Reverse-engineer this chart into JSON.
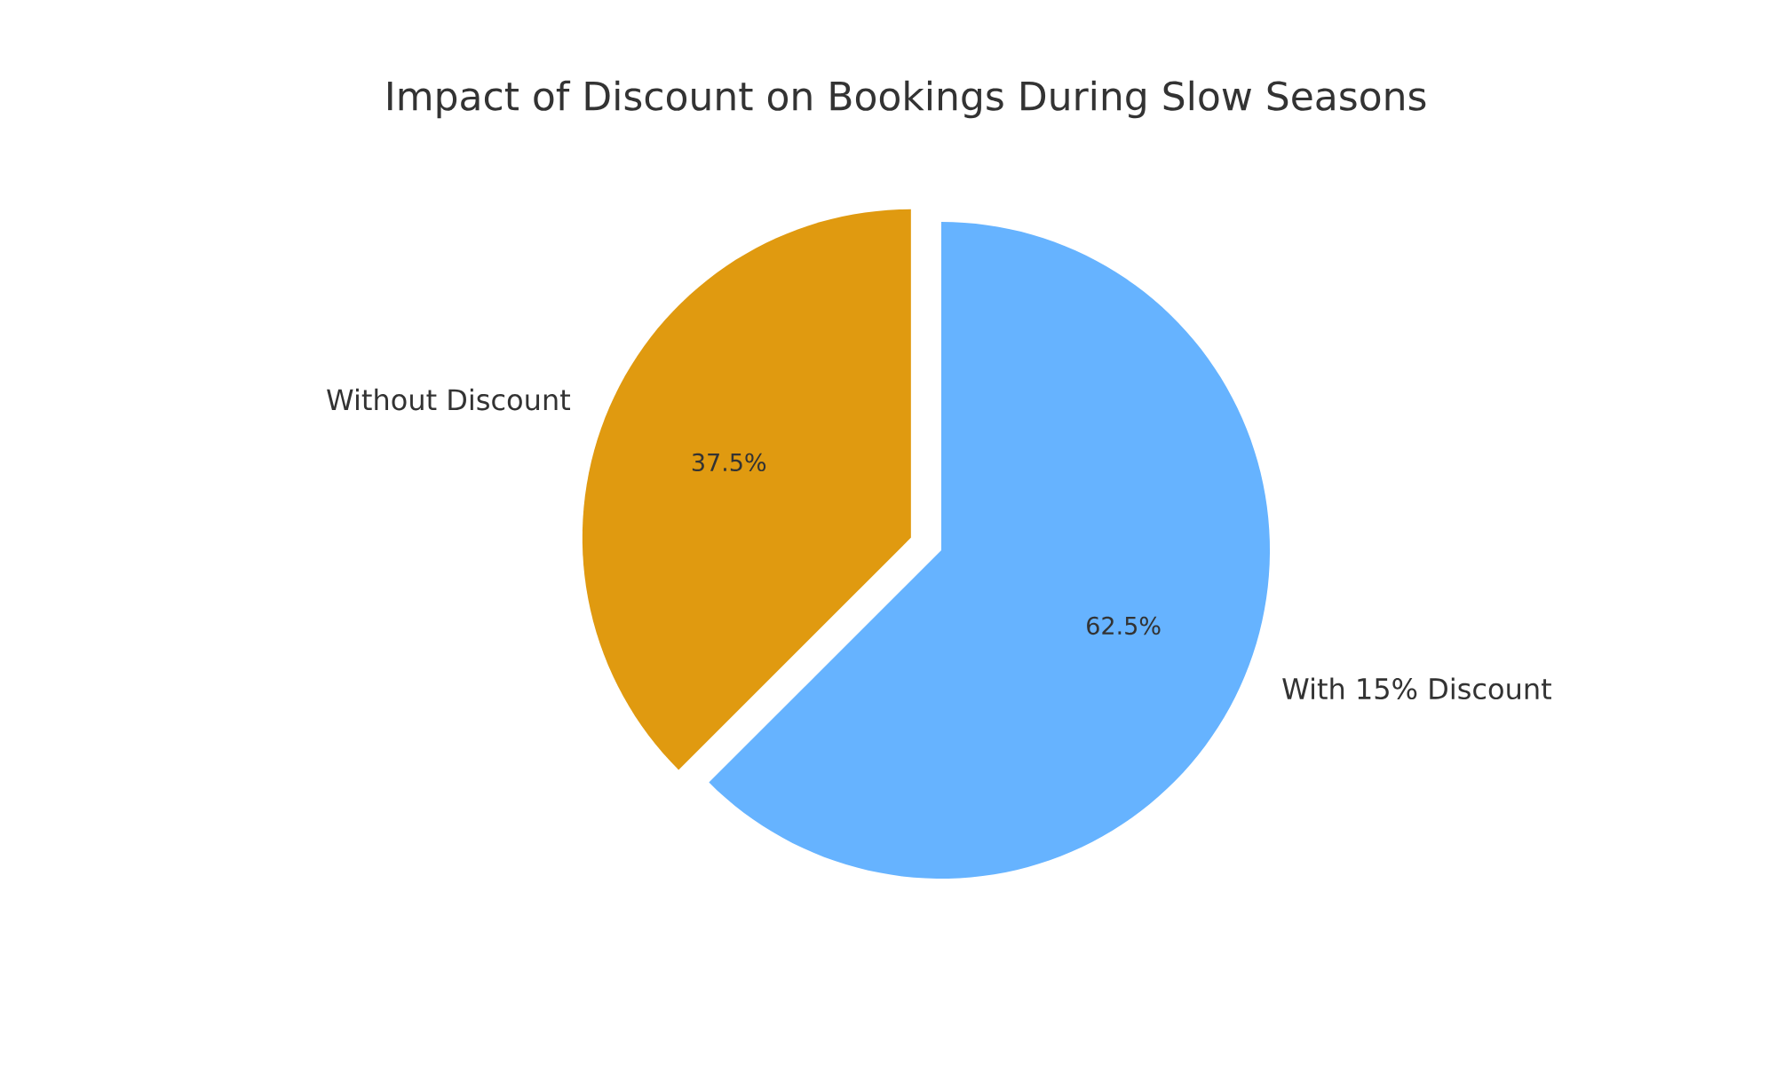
{
  "chart_data": {
    "type": "pie",
    "title": "Impact of Discount on Bookings During Slow Seasons",
    "categories": [
      "Without Discount",
      "With 15% Discount"
    ],
    "values": [
      37.5,
      62.5
    ],
    "colors": [
      "#e09a10",
      "#66b3ff"
    ],
    "value_labels": [
      "37.5%",
      "62.5%"
    ]
  }
}
